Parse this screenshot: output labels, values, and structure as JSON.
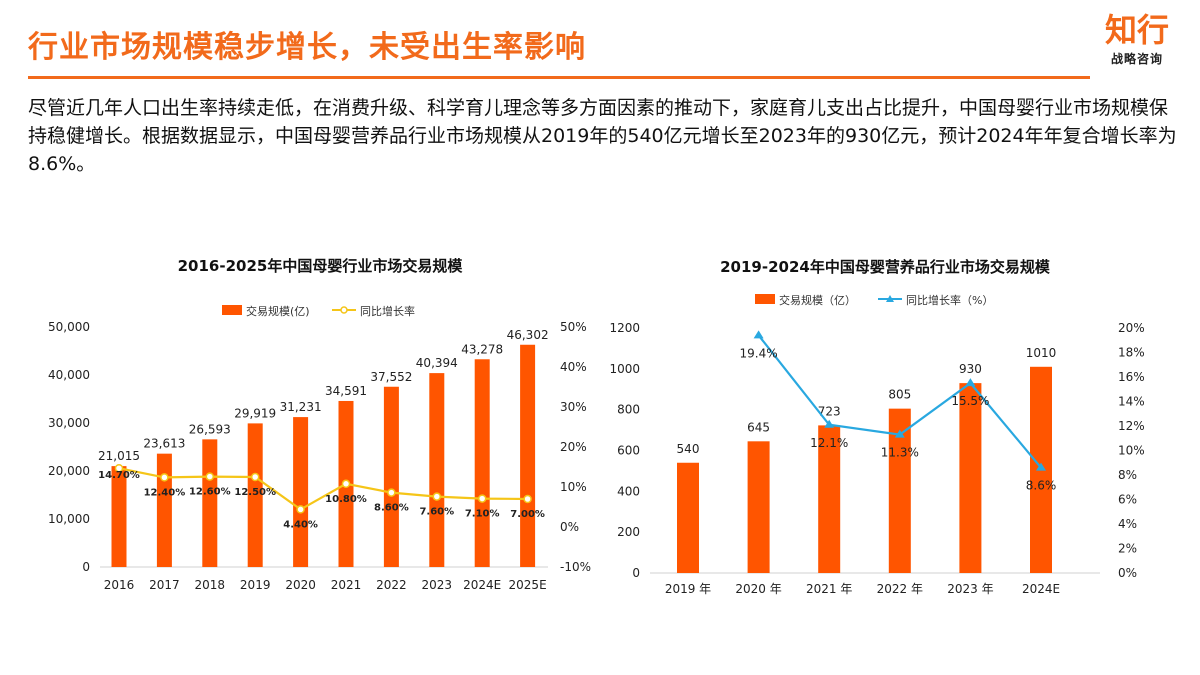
{
  "header": {
    "title": "行业市场规模稳步增长，未受出生率影响",
    "logo_main": "知行",
    "logo_sub": "战略咨询"
  },
  "paragraph": "尽管近几年人口出生率持续走低，在消费升级、科学育儿理念等多方面因素的推动下，家庭育儿支出占比提升，中国母婴行业市场规模保持稳健增长。根据数据显示，中国母婴营养品行业市场规模从2019年的540亿元增长至2023年的930亿元，预计2024年年复合增长率为8.6%。",
  "watermark": {
    "main": "知行",
    "sub": "战略咨询"
  },
  "colors": {
    "accent": "#f26a1b",
    "bar": "#ff5500",
    "line1": "#f5c518",
    "line2": "#29a8e0"
  },
  "chart_data": [
    {
      "type": "bar+line",
      "title": "2016-2025年中国母婴行业市场交易规模",
      "categories": [
        "2016",
        "2017",
        "2018",
        "2019",
        "2020",
        "2021",
        "2022",
        "2023",
        "2024E",
        "2025E"
      ],
      "series": [
        {
          "name": "交易规模(亿)",
          "type": "bar",
          "axis": "left",
          "values": [
            21015,
            23613,
            26593,
            29919,
            31231,
            34591,
            37552,
            40394,
            43278,
            46302
          ],
          "labels": [
            "21,015",
            "23,613",
            "26,593",
            "29,919",
            "31,231",
            "34,591",
            "37,552",
            "40,394",
            "43,278",
            "46,302"
          ]
        },
        {
          "name": "同比增长率",
          "type": "line",
          "axis": "right",
          "marker": "circle",
          "values": [
            14.7,
            12.4,
            12.6,
            12.5,
            4.4,
            10.8,
            8.6,
            7.6,
            7.1,
            7.0
          ],
          "labels": [
            "14.70%",
            "12.40%",
            "12.60%",
            "12.50%",
            "4.40%",
            "10.80%",
            "8.60%",
            "7.60%",
            "7.10%",
            "7.00%"
          ]
        }
      ],
      "ylim": [
        0,
        50000
      ],
      "yticks": [
        "0",
        "10,000",
        "20,000",
        "30,000",
        "40,000",
        "50,000"
      ],
      "y2lim": [
        -10,
        50
      ],
      "y2ticks": [
        "-10%",
        "0%",
        "10%",
        "20%",
        "30%",
        "40%",
        "50%"
      ],
      "legend": "top"
    },
    {
      "type": "bar+line",
      "title": "2019-2024年中国母婴营养品行业市场交易规模",
      "categories": [
        "2019 年",
        "2020 年",
        "2021 年",
        "2022 年",
        "2023 年",
        "2024E"
      ],
      "series": [
        {
          "name": "交易规模（亿）",
          "type": "bar",
          "axis": "left",
          "values": [
            540,
            645,
            723,
            805,
            930,
            1010
          ],
          "labels": [
            "540",
            "645",
            "723",
            "805",
            "930",
            "1010"
          ]
        },
        {
          "name": "同比增长率（%）",
          "type": "line",
          "axis": "right",
          "marker": "triangle",
          "values": [
            null,
            19.4,
            12.1,
            11.3,
            15.5,
            8.6
          ],
          "labels": [
            "",
            "19.4%",
            "12.1%",
            "11.3%",
            "15.5%",
            "8.6%"
          ]
        }
      ],
      "ylim": [
        0,
        1200
      ],
      "yticks": [
        "0",
        "200",
        "400",
        "600",
        "800",
        "1000",
        "1200"
      ],
      "y2lim": [
        0,
        20
      ],
      "y2ticks": [
        "0%",
        "2%",
        "4%",
        "6%",
        "8%",
        "10%",
        "12%",
        "14%",
        "16%",
        "18%",
        "20%"
      ],
      "legend": "top"
    }
  ]
}
